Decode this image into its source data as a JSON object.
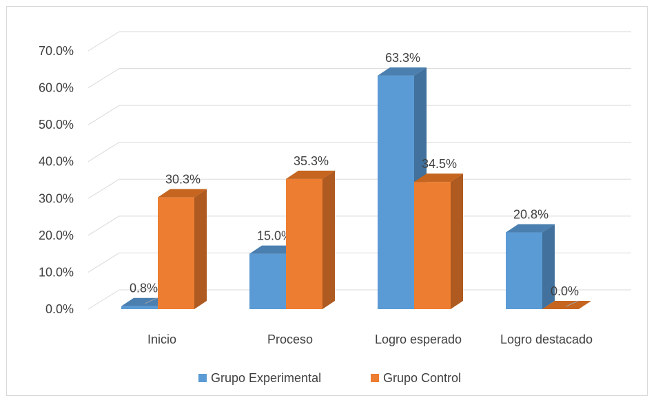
{
  "chart_data": {
    "type": "bar",
    "style": "3d-clustered-column",
    "categories": [
      "Inicio",
      "Proceso",
      "Logro esperado",
      "Logro destacado"
    ],
    "series": [
      {
        "name": "Grupo Experimental",
        "values": [
          0.8,
          15.0,
          63.3,
          20.8
        ],
        "labels": [
          "0.8%",
          "15.0%",
          "63.3%",
          "20.8%"
        ],
        "color": "#5b9bd5",
        "side_color": "#41719c",
        "top_color": "#4a7fb0"
      },
      {
        "name": "Grupo Control",
        "values": [
          30.3,
          35.3,
          34.5,
          0.0
        ],
        "labels": [
          "30.3%",
          "35.3%",
          "34.5%",
          "0.0%"
        ],
        "color": "#ed7d31",
        "side_color": "#ae5a21",
        "top_color": "#c5651f"
      }
    ],
    "yticks": [
      "0.0%",
      "10.0%",
      "20.0%",
      "30.0%",
      "40.0%",
      "50.0%",
      "60.0%",
      "70.0%"
    ],
    "ylim": [
      0,
      70
    ],
    "grid": true,
    "legend": "bottom"
  }
}
